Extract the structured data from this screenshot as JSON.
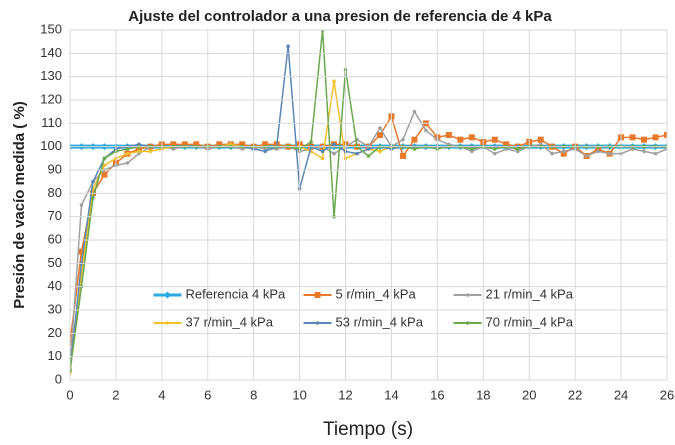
{
  "chart_data": {
    "type": "line",
    "title": "Ajuste del controlador a una presion de referencia de 4 kPa",
    "x_label": "Tiempo (s)",
    "y_label": "Presión de vacío medida ( %)",
    "x": [
      0,
      0.5,
      1,
      1.5,
      2,
      2.5,
      3,
      3.5,
      4,
      4.5,
      5,
      5.5,
      6,
      6.5,
      7,
      7.5,
      8,
      8.5,
      9,
      9.5,
      10,
      10.5,
      11,
      11.5,
      12,
      12.5,
      13,
      13.5,
      14,
      14.5,
      15,
      15.5,
      16,
      16.5,
      17,
      17.5,
      18,
      18.5,
      19,
      19.5,
      20,
      20.5,
      21,
      21.5,
      22,
      22.5,
      23,
      23.5,
      24,
      24.5,
      25,
      25.5,
      26
    ],
    "series": [
      {
        "name": "Referencia 4 kPa",
        "color": "#29a9e0",
        "marker": "diamond",
        "values": [
          100,
          100,
          100,
          100,
          100,
          100,
          100,
          100,
          100,
          100,
          100,
          100,
          100,
          100,
          100,
          100,
          100,
          100,
          100,
          100,
          100,
          100,
          100,
          100,
          100,
          100,
          100,
          100,
          100,
          100,
          100,
          100,
          100,
          100,
          100,
          100,
          100,
          100,
          100,
          100,
          100,
          100,
          100,
          100,
          100,
          100,
          100,
          100,
          100,
          100,
          100,
          100,
          100
        ]
      },
      {
        "name": "5 r/min_4 kPa",
        "color": "#e8782a",
        "marker": "square",
        "values": [
          16,
          55,
          80,
          88,
          93,
          97,
          99,
          100,
          101,
          101,
          101,
          101,
          100,
          101,
          101,
          101,
          100,
          101,
          101,
          100,
          101,
          100,
          100,
          101,
          101,
          100,
          100,
          105,
          113,
          96,
          103,
          110,
          104,
          105,
          103,
          104,
          102,
          103,
          101,
          100,
          102,
          103,
          100,
          97,
          100,
          96,
          99,
          97,
          104,
          104,
          103,
          104,
          105
        ]
      },
      {
        "name": "21 r/min_4 kPa",
        "color": "#a0a0a0",
        "marker": "circle",
        "values": [
          5,
          75,
          85,
          90,
          92,
          93,
          97,
          100,
          100,
          99,
          100,
          100,
          99,
          100,
          100,
          99,
          100,
          99,
          99,
          100,
          98,
          99,
          100,
          97,
          100,
          103,
          100,
          108,
          100,
          103,
          115,
          107,
          103,
          101,
          100,
          98,
          100,
          97,
          99,
          98,
          100,
          101,
          97,
          98,
          99,
          96,
          98,
          97,
          97,
          99,
          98,
          97,
          99
        ]
      },
      {
        "name": "37 r/min_4 kPa",
        "color": "#f2c12e",
        "marker": "circle",
        "values": [
          3,
          45,
          82,
          92,
          95,
          97,
          98,
          98,
          99,
          100,
          100,
          100,
          100,
          100,
          101,
          100,
          100,
          100,
          100,
          100,
          100,
          98,
          95,
          128,
          95,
          97,
          99,
          98,
          100,
          100,
          100,
          100,
          100,
          100,
          100,
          100,
          100,
          100,
          100,
          100,
          100,
          100,
          100,
          100,
          100,
          100,
          100,
          100,
          100,
          100,
          100,
          100,
          100
        ]
      },
      {
        "name": "53 r/min_4 kPa",
        "color": "#5b87b5",
        "marker": "circle",
        "values": [
          4,
          50,
          85,
          95,
          99,
          100,
          101,
          100,
          100,
          100,
          100,
          100,
          100,
          100,
          100,
          100,
          99,
          98,
          100,
          143,
          82,
          100,
          98,
          101,
          98,
          97,
          99,
          100,
          99,
          100,
          100,
          100,
          100,
          100,
          100,
          100,
          100,
          100,
          100,
          100,
          100,
          100,
          100,
          100,
          100,
          100,
          100,
          100,
          100,
          100,
          100,
          100,
          100
        ]
      },
      {
        "name": "70 r/min_4 kPa",
        "color": "#6aa84f",
        "marker": "circle",
        "values": [
          4,
          40,
          78,
          95,
          98,
          99,
          100,
          100,
          100,
          100,
          100,
          100,
          100,
          100,
          100,
          100,
          100,
          100,
          100,
          100,
          99,
          102,
          150,
          70,
          133,
          100,
          96,
          100,
          100,
          100,
          99,
          100,
          99,
          100,
          100,
          99,
          100,
          99,
          100,
          99,
          100,
          100,
          100,
          100,
          100,
          100,
          100,
          100,
          100,
          100,
          100,
          100,
          100
        ]
      }
    ],
    "xlim": [
      0,
      26
    ],
    "xticks": [
      0,
      2,
      4,
      6,
      8,
      10,
      12,
      14,
      16,
      18,
      20,
      22,
      24,
      26
    ],
    "ylim": [
      0,
      150
    ],
    "yticks": [
      0,
      10,
      20,
      30,
      40,
      50,
      60,
      70,
      80,
      90,
      100,
      110,
      120,
      130,
      140,
      150
    ],
    "grid": true,
    "legend": "lower center"
  }
}
